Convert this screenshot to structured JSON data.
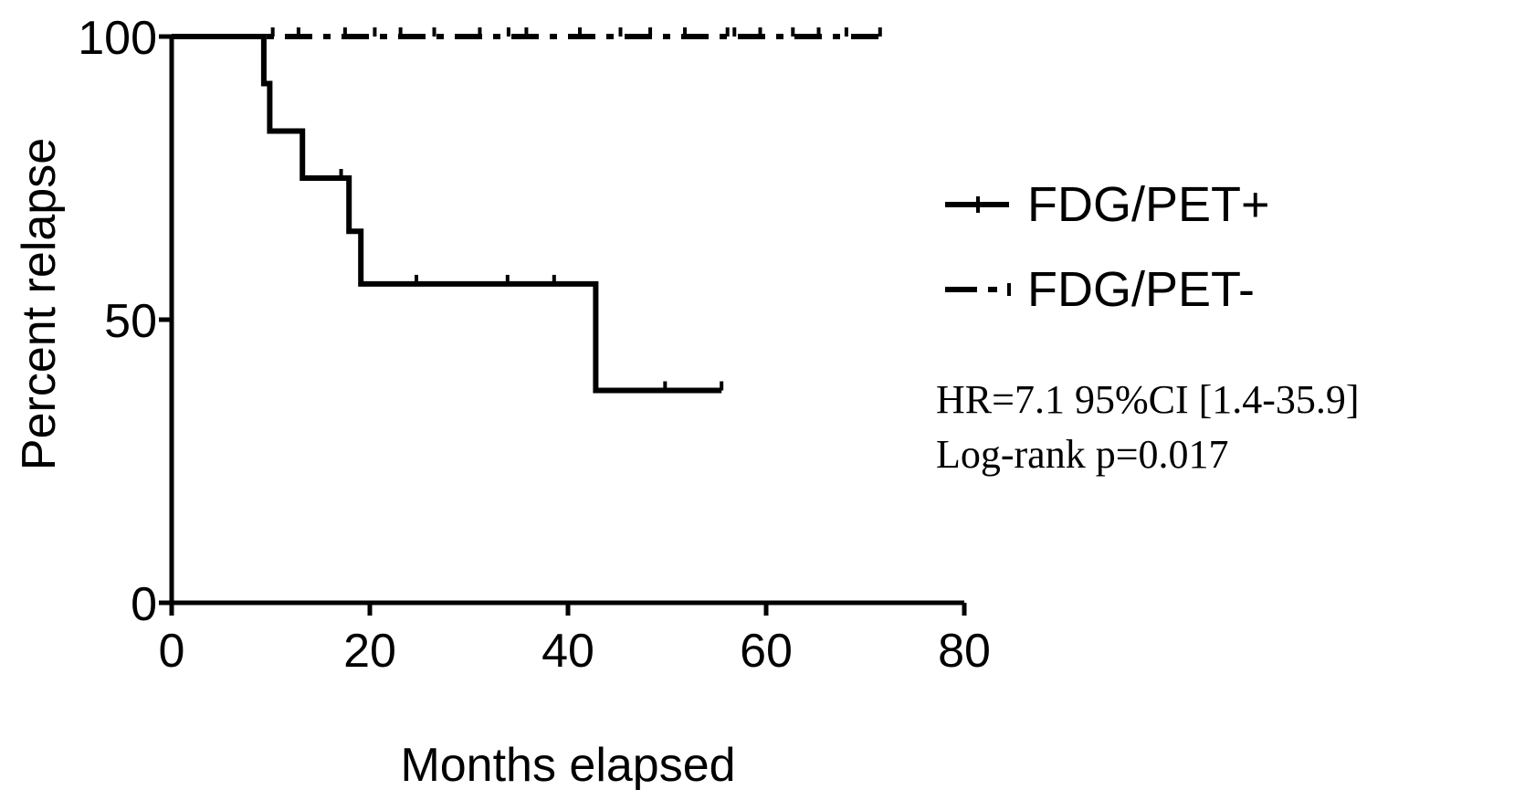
{
  "chart_data": {
    "type": "line",
    "xlabel": "Months elapsed",
    "ylabel": "Percent relapse",
    "xlim": [
      0,
      80
    ],
    "ylim": [
      0,
      100
    ],
    "xticks": [
      "0",
      "20",
      "40",
      "60",
      "80"
    ],
    "yticks": [
      "0",
      "50",
      "100"
    ],
    "legend_position": "right",
    "series": [
      {
        "name": "FDG/PET+",
        "style": "solid",
        "color": "#000000",
        "steps": [
          [
            0,
            100
          ],
          [
            9.3,
            100
          ],
          [
            9.3,
            91.7
          ],
          [
            9.9,
            91.7
          ],
          [
            9.9,
            83.3
          ],
          [
            13.2,
            83.3
          ],
          [
            13.2,
            75
          ],
          [
            17.9,
            75
          ],
          [
            17.9,
            65.6
          ],
          [
            19.1,
            65.6
          ],
          [
            19.1,
            56.3
          ],
          [
            42.8,
            56.3
          ],
          [
            42.8,
            37.5
          ],
          [
            55.5,
            37.5
          ]
        ],
        "censored": [
          [
            17.1,
            75
          ],
          [
            24.7,
            56.3
          ],
          [
            33.9,
            56.3
          ],
          [
            38.6,
            56.3
          ],
          [
            49.8,
            37.5
          ],
          [
            55.5,
            37.5
          ]
        ]
      },
      {
        "name": "FDG/PET-",
        "style": "dash-dot",
        "color": "#000000",
        "steps": [
          [
            0,
            100
          ],
          [
            71.5,
            100
          ]
        ],
        "censored": [
          [
            10.2,
            100
          ],
          [
            12.8,
            100
          ],
          [
            17.5,
            100
          ],
          [
            20.5,
            100
          ],
          [
            23.1,
            100
          ],
          [
            26.5,
            100
          ],
          [
            31.1,
            100
          ],
          [
            34.0,
            100
          ],
          [
            35.8,
            100
          ],
          [
            41.2,
            100
          ],
          [
            45.3,
            100
          ],
          [
            48.3,
            100
          ],
          [
            51.8,
            100
          ],
          [
            56.1,
            100
          ],
          [
            56.8,
            100
          ],
          [
            59.4,
            100
          ],
          [
            62.7,
            100
          ],
          [
            65.3,
            100
          ],
          [
            68.1,
            100
          ],
          [
            71.5,
            100
          ]
        ]
      }
    ],
    "annotations": [
      "HR=7.1 95%CI [1.4-35.9]",
      "Log-rank p=0.017"
    ]
  }
}
